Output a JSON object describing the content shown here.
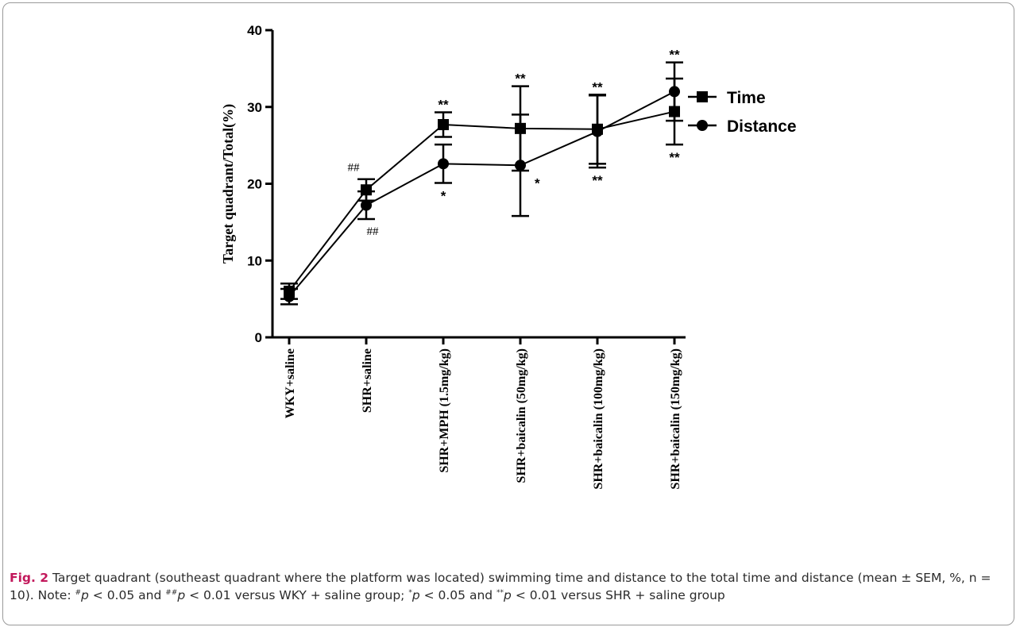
{
  "chart_data": {
    "type": "line",
    "ylabel": "Target quadrant/Total(%)",
    "xlabel": "",
    "ylim": [
      0,
      40
    ],
    "yticks": [
      "0",
      "10",
      "20",
      "30",
      "40"
    ],
    "categories": [
      "WKY+saline",
      "SHR+saline",
      "SHR+MPH (1.5mg/kg)",
      "SHR+baicalin (50mg/kg)",
      "SHR+baicalin (100mg/kg)",
      "SHR+baicalin (150mg/kg)"
    ],
    "series": [
      {
        "name": "Time",
        "marker": "square",
        "values": [
          6.0,
          19.2,
          27.7,
          27.2,
          27.1,
          29.4
        ],
        "error": [
          1.0,
          1.4,
          1.6,
          5.5,
          4.5,
          4.3
        ]
      },
      {
        "name": "Distance",
        "marker": "circle",
        "values": [
          5.3,
          17.2,
          22.6,
          22.4,
          26.8,
          32.0
        ],
        "error": [
          1.0,
          1.8,
          2.5,
          6.6,
          4.7,
          3.8
        ]
      }
    ],
    "legend_position": "right",
    "annotations": [
      {
        "category": 1,
        "series": "Time",
        "text": "##",
        "position": "above"
      },
      {
        "category": 1,
        "series": "Distance",
        "text": "##",
        "position": "below"
      },
      {
        "category": 2,
        "series": "Time",
        "text": "**",
        "position": "above"
      },
      {
        "category": 2,
        "series": "Distance",
        "text": "*",
        "position": "below"
      },
      {
        "category": 3,
        "series": "Time",
        "text": "**",
        "position": "above"
      },
      {
        "category": 3,
        "series": "Distance",
        "text": "*",
        "position": "right"
      },
      {
        "category": 4,
        "series": "Time",
        "text": "**",
        "position": "above"
      },
      {
        "category": 4,
        "series": "Distance",
        "text": "**",
        "position": "below"
      },
      {
        "category": 5,
        "series": "Distance",
        "text": "**",
        "position": "above"
      },
      {
        "category": 5,
        "series": "Time",
        "text": "**",
        "position": "below"
      }
    ],
    "colors": {
      "line": "#000000"
    }
  },
  "caption": {
    "label": "Fig. 2",
    "text_main": "Target quadrant (southeast quadrant where the platform was located) swimming time and distance to the total time and distance (mean ± SEM, %, n = 10). Note: ",
    "sym1": "#",
    "p1": "p",
    "t1": " < 0.05 and ",
    "sym2": "##",
    "p2": "p",
    "t2": " < 0.01 versus WKY + saline group; ",
    "sym3": "*",
    "p3": "p",
    "t3": " < 0.05 and ",
    "sym4": "**",
    "p4": "p",
    "t4": " < 0.01 versus SHR + saline group"
  }
}
